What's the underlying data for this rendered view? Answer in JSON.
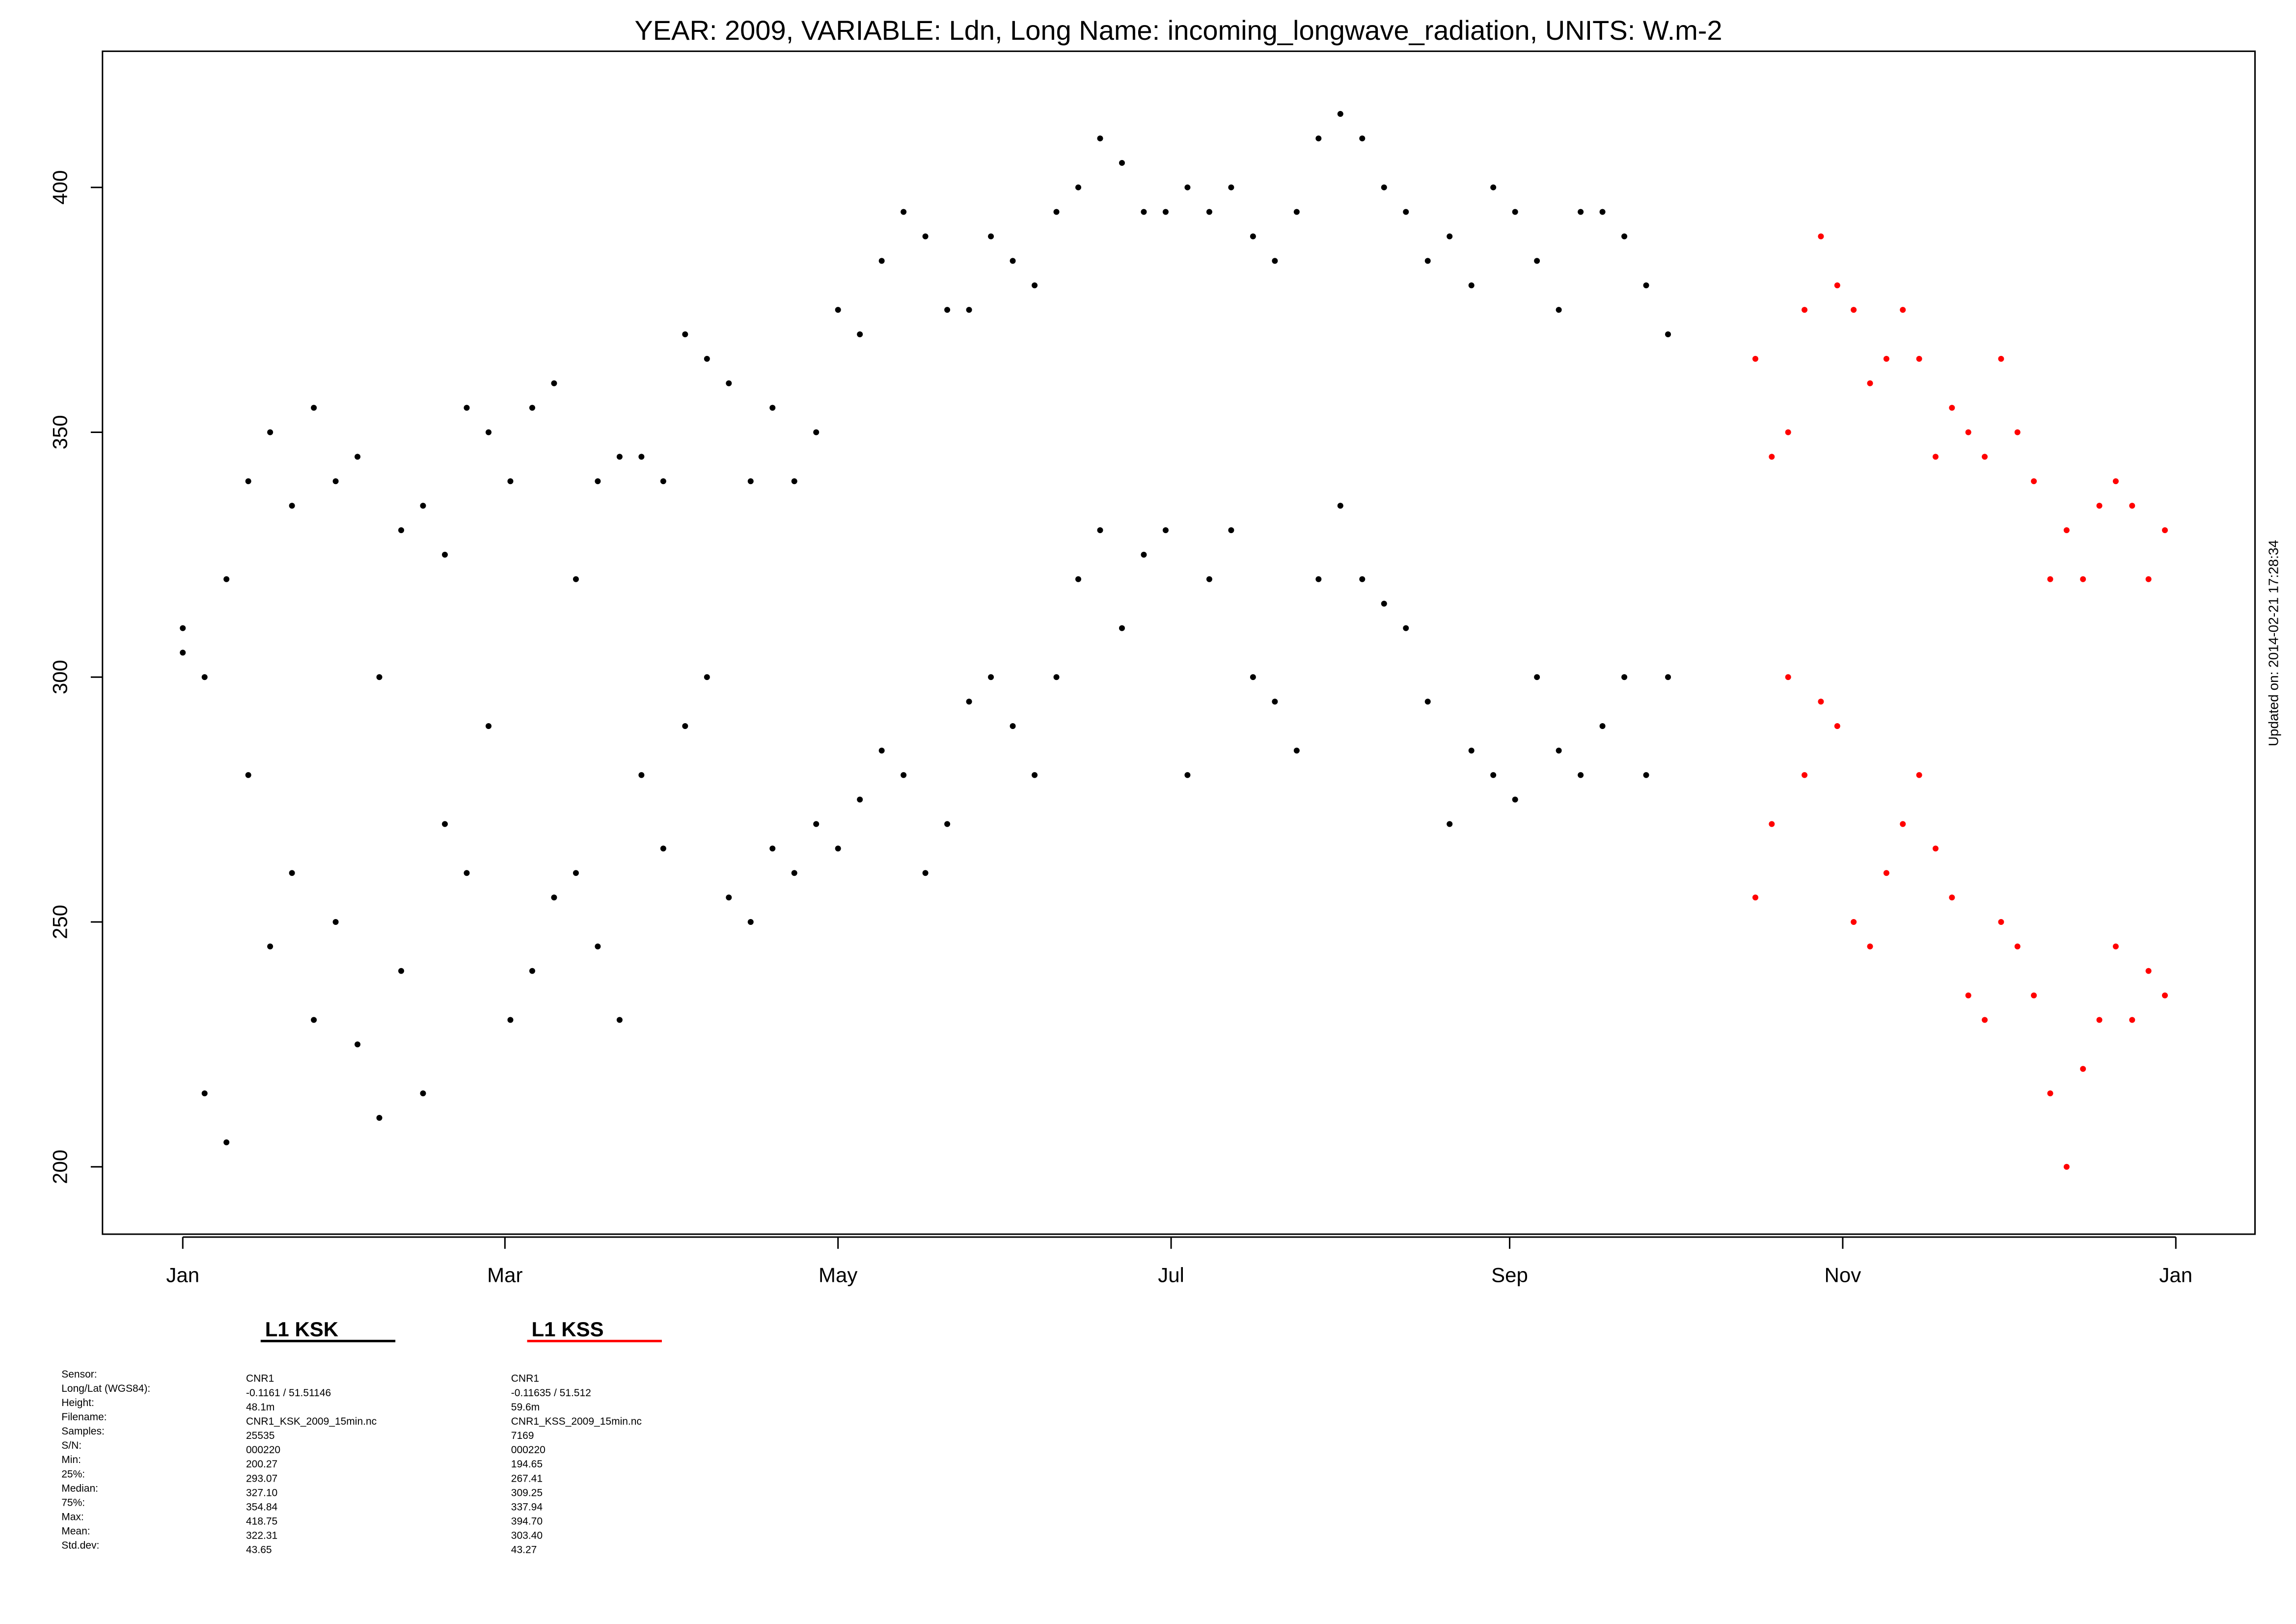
{
  "chart_data": {
    "type": "scatter",
    "title": "YEAR: 2009, VARIABLE: Ldn, Long Name: incoming_longwave_radiation, UNITS: W.m-2",
    "note": "Updated on: 2014-02-21 17:28:34",
    "xlim": [
      -14.7,
      379.5
    ],
    "ylim": [
      186.25,
      427.8
    ],
    "xticks": [
      {
        "value": 0,
        "label": "Jan"
      },
      {
        "value": 59,
        "label": "Mar"
      },
      {
        "value": 120,
        "label": "May"
      },
      {
        "value": 181,
        "label": "Jul"
      },
      {
        "value": 243,
        "label": "Sep"
      },
      {
        "value": 304,
        "label": "Nov"
      },
      {
        "value": 365,
        "label": "Jan"
      }
    ],
    "yticks": [
      200,
      250,
      300,
      350,
      400
    ],
    "series": [
      {
        "name": "L1 KSK",
        "color": "#000000",
        "x": [
          0,
          0,
          4,
          4,
          8,
          8,
          12,
          12,
          16,
          16,
          20,
          20,
          24,
          24,
          28,
          28,
          32,
          32,
          36,
          36,
          40,
          40,
          44,
          44,
          48,
          48,
          52,
          52,
          56,
          56,
          60,
          60,
          64,
          64,
          68,
          68,
          72,
          72,
          76,
          76,
          80,
          80,
          84,
          84,
          88,
          88,
          92,
          92,
          96,
          96,
          100,
          100,
          104,
          104,
          108,
          108,
          112,
          112,
          116,
          116,
          120,
          120,
          124,
          124,
          128,
          128,
          132,
          132,
          136,
          136,
          140,
          140,
          144,
          144,
          148,
          148,
          152,
          152,
          156,
          156,
          160,
          160,
          164,
          164,
          168,
          168,
          172,
          172,
          176,
          176,
          180,
          180,
          184,
          184,
          188,
          188,
          192,
          192,
          196,
          196,
          200,
          200,
          204,
          204,
          208,
          208,
          212,
          212,
          216,
          216,
          220,
          220,
          224,
          224,
          228,
          228,
          232,
          232,
          236,
          236,
          240,
          240,
          244,
          244,
          248,
          248,
          252,
          252,
          256,
          256,
          260,
          260,
          264,
          264,
          268,
          268,
          272,
          272
        ],
        "values": [
          310,
          305,
          215,
          300,
          205,
          320,
          340,
          280,
          350,
          245,
          335,
          260,
          355,
          230,
          340,
          250,
          345,
          225,
          300,
          210,
          330,
          240,
          335,
          215,
          325,
          270,
          355,
          260,
          350,
          290,
          340,
          230,
          355,
          240,
          360,
          255,
          320,
          260,
          340,
          245,
          345,
          230,
          345,
          280,
          340,
          265,
          370,
          290,
          365,
          300,
          360,
          255,
          340,
          250,
          355,
          265,
          340,
          260,
          350,
          270,
          375,
          265,
          370,
          275,
          385,
          285,
          395,
          280,
          390,
          260,
          375,
          270,
          375,
          295,
          390,
          300,
          385,
          290,
          380,
          280,
          395,
          300,
          400,
          320,
          410,
          330,
          405,
          310,
          395,
          325,
          395,
          330,
          400,
          280,
          395,
          320,
          400,
          330,
          390,
          300,
          385,
          295,
          395,
          285,
          410,
          320,
          415,
          335,
          410,
          320,
          400,
          315,
          395,
          310,
          385,
          295,
          390,
          270,
          380,
          285,
          400,
          280,
          395,
          275,
          385,
          300,
          375,
          285,
          395,
          280,
          395,
          290,
          390,
          300,
          380,
          280,
          370,
          300
        ]
      },
      {
        "name": "L1 KSS",
        "color": "#ff0000",
        "x": [
          288,
          288,
          291,
          291,
          294,
          294,
          297,
          297,
          300,
          300,
          303,
          303,
          306,
          306,
          309,
          309,
          312,
          312,
          315,
          315,
          318,
          318,
          321,
          321,
          324,
          324,
          327,
          327,
          330,
          330,
          333,
          333,
          336,
          336,
          339,
          339,
          342,
          342,
          345,
          345,
          348,
          348,
          351,
          351,
          354,
          354,
          357,
          357,
          360,
          360,
          363,
          363
        ],
        "values": [
          365,
          255,
          345,
          270,
          350,
          300,
          375,
          280,
          390,
          295,
          380,
          290,
          375,
          250,
          360,
          245,
          365,
          260,
          375,
          270,
          365,
          280,
          345,
          265,
          355,
          255,
          350,
          235,
          345,
          230,
          365,
          250,
          350,
          245,
          340,
          235,
          320,
          215,
          330,
          200,
          320,
          220,
          335,
          230,
          340,
          245,
          335,
          230,
          320,
          240,
          330,
          235
        ]
      }
    ],
    "stats": {
      "labels": [
        "Sensor:",
        "Long/Lat (WGS84):",
        "Height:",
        "Filename:",
        "Samples:",
        "S/N:",
        "Min:",
        "25%:",
        "Median:",
        "75%:",
        "Max:",
        "Mean:",
        "Std.dev:"
      ],
      "columns": [
        [
          "CNR1",
          "-0.1161 / 51.51146",
          "48.1m",
          "CNR1_KSK_2009_15min.nc",
          "25535",
          "000220",
          "200.27",
          "293.07",
          "327.10",
          "354.84",
          "418.75",
          "322.31",
          "43.65"
        ],
        [
          "CNR1",
          "-0.11635 / 51.512",
          "59.6m",
          "CNR1_KSS_2009_15min.nc",
          "7169",
          "000220",
          "194.65",
          "267.41",
          "309.25",
          "337.94",
          "394.70",
          "303.40",
          "43.27"
        ]
      ]
    }
  }
}
